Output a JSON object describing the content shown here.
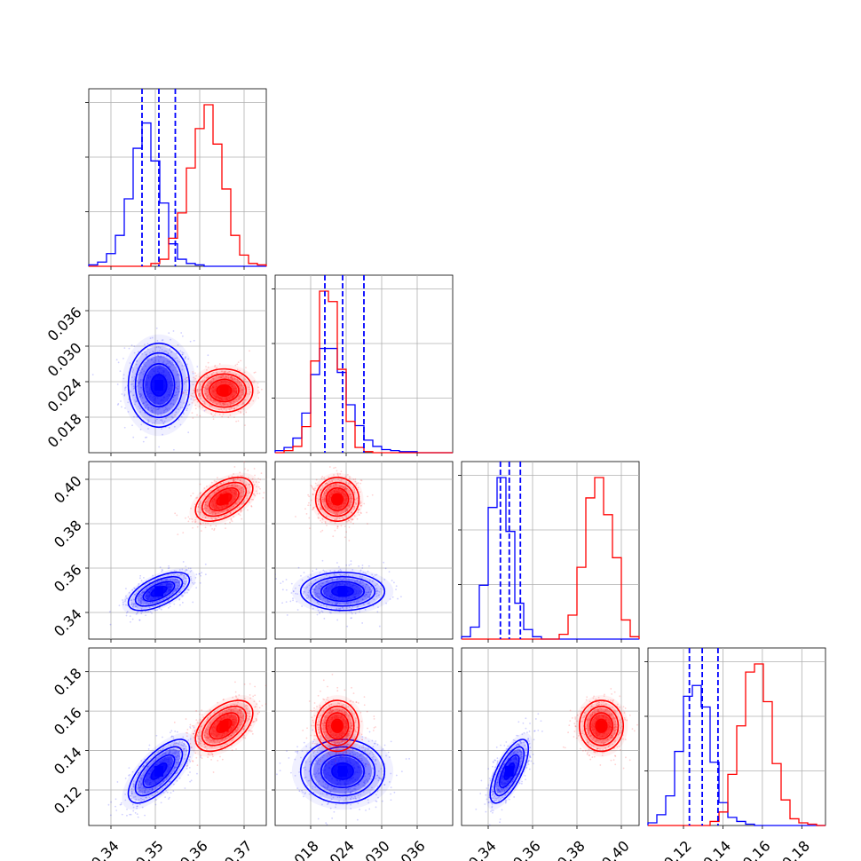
{
  "chart_data": {
    "type": "corner",
    "grid": true,
    "colors": {
      "series_a": "#0000ff",
      "series_b": "#ff0000"
    },
    "series": [
      {
        "color": "#0000ff",
        "mean": [
          0.3508,
          0.0234,
          0.3495,
          0.1295
        ],
        "std": [
          0.0032,
          0.0033,
          0.004,
          0.0075
        ],
        "corr": [
          [
            1,
            0,
            0.6,
            0.7
          ],
          [
            0,
            1,
            0,
            0
          ],
          [
            0.6,
            0,
            1,
            0.7
          ],
          [
            0.7,
            0,
            0.7,
            1
          ]
        ],
        "quantiles": [
          [
            0.347,
            0.3508,
            0.3545
          ],
          [
            0.0204,
            0.0234,
            0.027
          ],
          [
            0.3455,
            0.3495,
            0.3545
          ],
          [
            0.123,
            0.1295,
            0.1375
          ]
        ]
      },
      {
        "color": "#ff0000",
        "mean": [
          0.3655,
          0.0225,
          0.391,
          0.1525
        ],
        "std": [
          0.003,
          0.0017,
          0.0046,
          0.006
        ],
        "corr": [
          [
            1,
            0,
            0.5,
            0.5
          ],
          [
            0,
            1,
            0,
            0
          ],
          [
            0.5,
            0,
            1,
            0
          ],
          [
            0.5,
            0,
            0,
            1
          ]
        ],
        "quantiles": []
      }
    ],
    "histograms": [
      {
        "bins": [
          0.335,
          0.375
        ],
        "a": [
          1,
          3,
          9,
          22,
          48,
          84,
          102,
          75,
          45,
          16,
          5,
          2,
          1,
          0,
          0,
          0,
          0,
          0,
          0,
          0
        ],
        "b": [
          0,
          0,
          0,
          0,
          0,
          0,
          0,
          2,
          5,
          20,
          38,
          70,
          98,
          115,
          87,
          55,
          22,
          8,
          2,
          1
        ]
      },
      {
        "bins": [
          0.012,
          0.042
        ],
        "a": [
          2,
          5,
          14,
          38,
          75,
          100,
          100,
          77,
          46,
          26,
          12,
          6,
          3,
          2,
          1,
          1,
          0,
          0,
          0,
          0
        ],
        "b": [
          0,
          2,
          6,
          25,
          88,
          155,
          145,
          80,
          30,
          5,
          1,
          0,
          0,
          0,
          0,
          0,
          0,
          0,
          0,
          0
        ]
      },
      {
        "bins": [
          0.328,
          0.408
        ],
        "a": [
          2,
          10,
          45,
          110,
          135,
          90,
          30,
          8,
          2,
          0,
          0,
          0,
          0,
          0,
          0,
          0,
          0,
          0,
          0,
          0
        ],
        "b": [
          0,
          0,
          0,
          0,
          0,
          0,
          0,
          0,
          0,
          0,
          0,
          4,
          20,
          60,
          118,
          135,
          104,
          68,
          16,
          2
        ]
      },
      {
        "bins": [
          0.102,
          0.192
        ],
        "a": [
          2,
          8,
          22,
          55,
          96,
          104,
          88,
          47,
          17,
          6,
          3,
          1,
          0,
          0,
          0,
          0,
          0,
          0,
          0,
          0
        ],
        "b": [
          0,
          0,
          0,
          0,
          0,
          0,
          0,
          3,
          10,
          38,
          74,
          114,
          120,
          92,
          46,
          19,
          5,
          2,
          1,
          0
        ]
      }
    ],
    "params": [
      {
        "range": [
          0.335,
          0.375
        ],
        "ticks": [
          0.34,
          0.35,
          0.36,
          0.37
        ],
        "tick_labels": [
          "0.34",
          "0.35",
          "0.36",
          "0.37"
        ]
      },
      {
        "range": [
          0.012,
          0.042
        ],
        "ticks": [
          0.018,
          0.024,
          0.03,
          0.036
        ],
        "tick_labels": [
          "0.018",
          "0.024",
          "0.030",
          "0.036"
        ]
      },
      {
        "range": [
          0.328,
          0.408
        ],
        "ticks": [
          0.34,
          0.36,
          0.38,
          0.4
        ],
        "tick_labels": [
          "0.34",
          "0.36",
          "0.38",
          "0.40"
        ]
      },
      {
        "range": [
          0.102,
          0.192
        ],
        "ticks": [
          0.12,
          0.14,
          0.16,
          0.18
        ],
        "tick_labels": [
          "0.12",
          "0.14",
          "0.16",
          "0.18"
        ]
      }
    ],
    "contour_levels": [
      0.118,
      0.393,
      0.675,
      0.865
    ]
  }
}
